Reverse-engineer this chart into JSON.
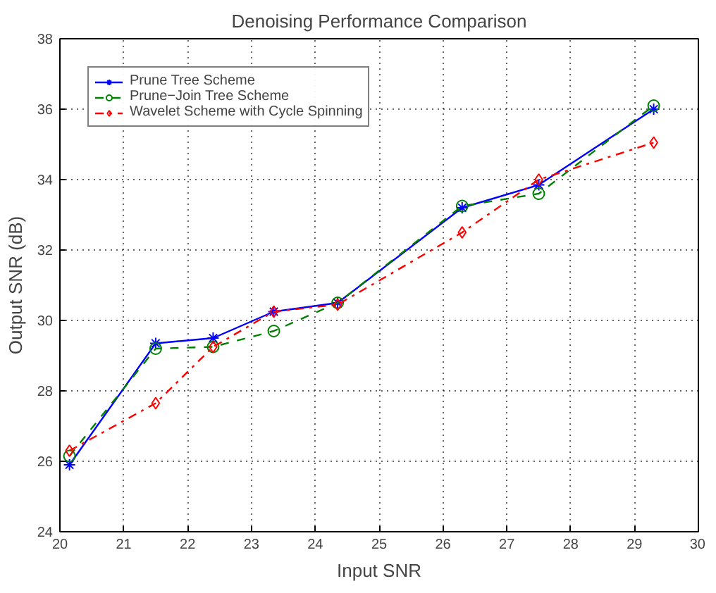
{
  "chart_data": {
    "type": "line",
    "title": "Denoising Performance Comparison",
    "xlabel": "Input SNR",
    "ylabel": "Output SNR (dB)",
    "x": [
      20.15,
      21.5,
      22.4,
      23.35,
      24.35,
      26.3,
      27.5,
      29.3
    ],
    "series": [
      {
        "name": "Prune Tree Scheme",
        "color": "#0000ff",
        "marker": "cross",
        "line_style": "solid",
        "values": [
          25.9,
          29.35,
          29.5,
          30.25,
          30.5,
          33.2,
          33.85,
          36.0
        ]
      },
      {
        "name": "Prune−Join Tree Scheme",
        "color": "#008000",
        "marker": "circle",
        "line_style": "dashed",
        "values": [
          26.15,
          29.2,
          29.25,
          29.7,
          30.5,
          33.25,
          33.6,
          36.1
        ]
      },
      {
        "name": "Wavelet Scheme with Cycle Spinning",
        "color": "#ff0000",
        "marker": "diamond",
        "line_style": "dashdot",
        "values": [
          26.3,
          27.65,
          29.25,
          30.25,
          30.45,
          32.5,
          34.0,
          35.05
        ]
      }
    ],
    "xlim": [
      20,
      30
    ],
    "xticks": [
      20,
      21,
      22,
      23,
      24,
      25,
      26,
      27,
      28,
      29,
      30
    ],
    "ylim": [
      24,
      38
    ],
    "yticks": [
      24,
      26,
      28,
      30,
      32,
      34,
      36,
      38
    ],
    "grid": true,
    "legend": "top left"
  }
}
